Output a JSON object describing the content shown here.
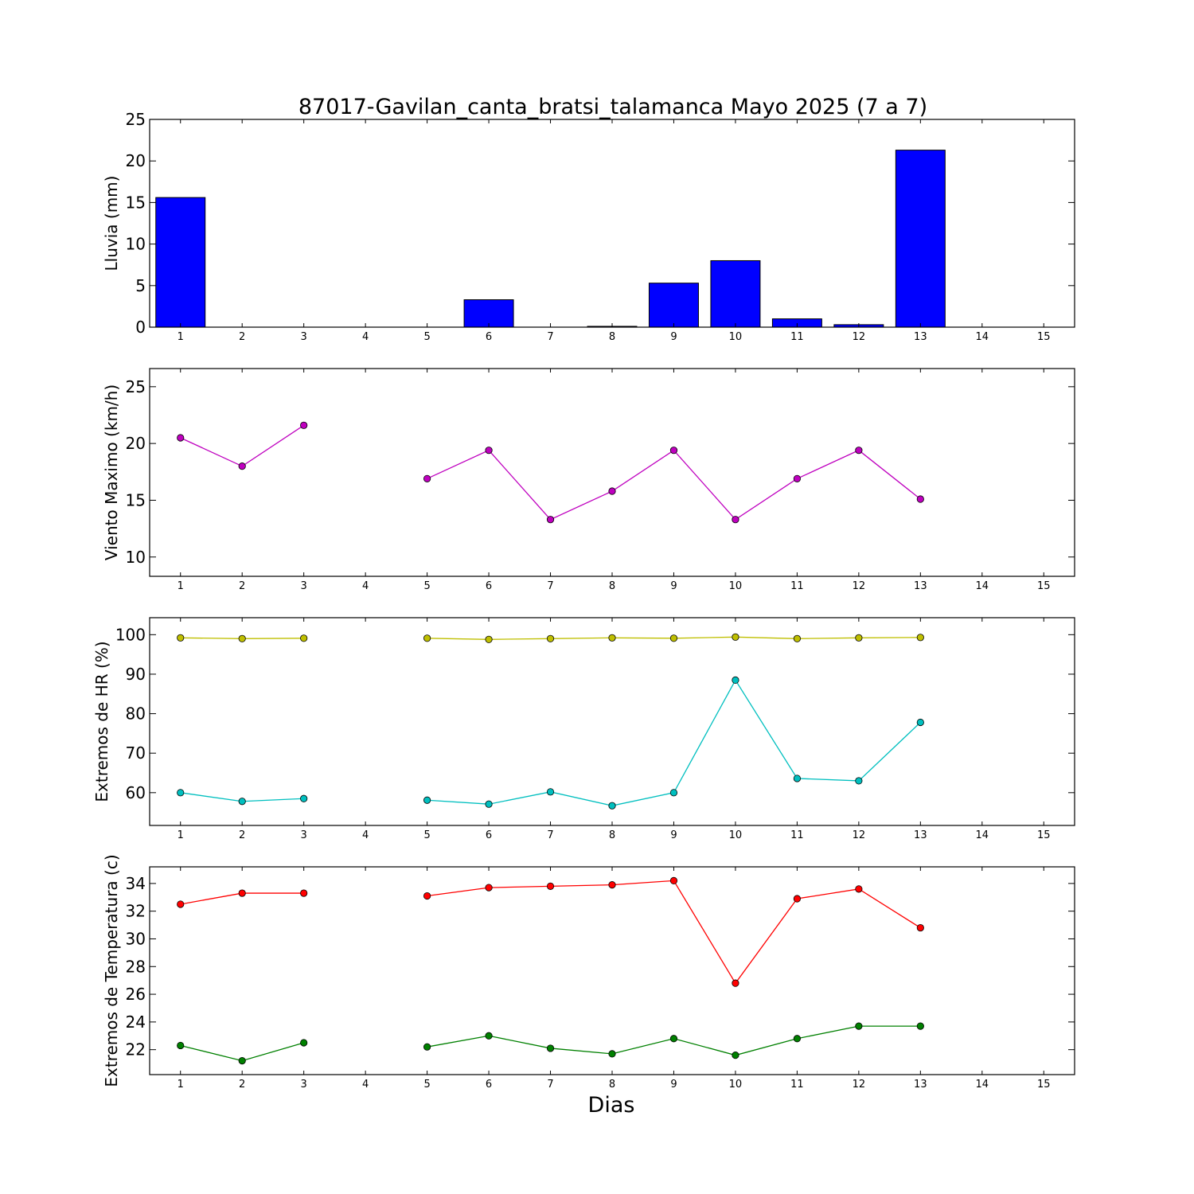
{
  "chart_data": [
    {
      "type": "bar",
      "title": "87017-Gavilan_canta_bratsi_talamanca Mayo 2025  (7 a 7)",
      "ylabel": "Lluvia (mm)",
      "xlabel": "",
      "x": [
        1,
        2,
        3,
        4,
        5,
        6,
        7,
        8,
        9,
        10,
        11,
        12,
        13,
        14,
        15
      ],
      "xlim": [
        0.5,
        15.5
      ],
      "ylim": [
        0,
        25
      ],
      "yticks": [
        0,
        5,
        10,
        15,
        20,
        25
      ],
      "grid": false,
      "series": [
        {
          "color": "#0000ff",
          "values": [
            15.6,
            0,
            0,
            null,
            0,
            3.3,
            0,
            0.1,
            5.3,
            8.0,
            1.0,
            0.3,
            21.3,
            null,
            null
          ]
        }
      ]
    },
    {
      "type": "line",
      "ylabel": "Viento Maximo (km/h)",
      "xlabel": "",
      "x": [
        1,
        2,
        3,
        4,
        5,
        6,
        7,
        8,
        9,
        10,
        11,
        12,
        13,
        14,
        15
      ],
      "xlim": [
        0.5,
        15.5
      ],
      "ylim": [
        8.3,
        26.6
      ],
      "yticks": [
        10,
        15,
        20,
        25
      ],
      "grid": false,
      "series": [
        {
          "color": "#bf00bf",
          "values": [
            20.5,
            18.0,
            21.6,
            null,
            16.9,
            19.4,
            13.3,
            15.8,
            19.4,
            13.3,
            16.9,
            19.4,
            15.1,
            null,
            null
          ]
        }
      ]
    },
    {
      "type": "line",
      "ylabel": "Extremos de HR (%)",
      "xlabel": "",
      "x": [
        1,
        2,
        3,
        4,
        5,
        6,
        7,
        8,
        9,
        10,
        11,
        12,
        13,
        14,
        15
      ],
      "xlim": [
        0.5,
        15.5
      ],
      "ylim": [
        51.7,
        104.3
      ],
      "yticks": [
        60,
        70,
        80,
        90,
        100
      ],
      "grid": false,
      "series": [
        {
          "color": "#bfbf00",
          "values": [
            99.2,
            99.0,
            99.1,
            null,
            99.1,
            98.8,
            99.0,
            99.2,
            99.1,
            99.4,
            99.0,
            99.2,
            99.3,
            null,
            null
          ]
        },
        {
          "color": "#00bfbf",
          "values": [
            60.0,
            57.8,
            58.5,
            null,
            58.1,
            57.1,
            60.2,
            56.7,
            60.0,
            88.5,
            63.6,
            63.0,
            77.8,
            null,
            null
          ]
        }
      ]
    },
    {
      "type": "line",
      "ylabel": "Extremos de Temperatura (c)",
      "xlabel": "Dias",
      "x": [
        1,
        2,
        3,
        4,
        5,
        6,
        7,
        8,
        9,
        10,
        11,
        12,
        13,
        14,
        15
      ],
      "xlim": [
        0.5,
        15.5
      ],
      "ylim": [
        20.2,
        35.2
      ],
      "yticks": [
        22,
        24,
        26,
        28,
        30,
        32,
        34
      ],
      "grid": false,
      "series": [
        {
          "color": "#ff0000",
          "values": [
            32.5,
            33.3,
            33.3,
            null,
            33.1,
            33.7,
            33.8,
            33.9,
            34.2,
            26.8,
            32.9,
            33.6,
            30.8,
            null,
            null
          ]
        },
        {
          "color": "#008000",
          "values": [
            22.3,
            21.2,
            22.5,
            null,
            22.2,
            23.0,
            22.1,
            21.7,
            22.8,
            21.6,
            22.8,
            23.7,
            23.7,
            null,
            null
          ]
        }
      ]
    }
  ]
}
